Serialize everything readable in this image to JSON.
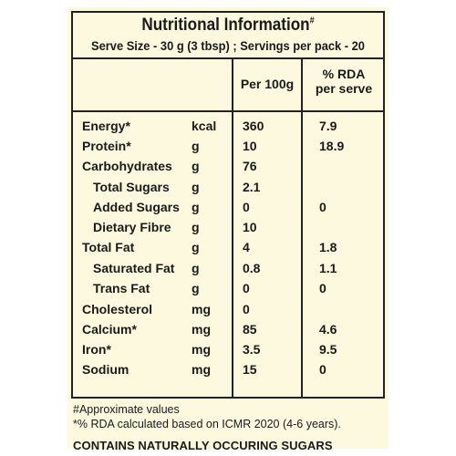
{
  "label": {
    "title": "Nutritional Information",
    "title_mark": "#",
    "serve_line": "Serve Size - 30 g (3 tbsp) ;  Servings per pack - 20",
    "columns": {
      "per100": "Per 100g",
      "rda_line1": "% RDA",
      "rda_line2": "per serve"
    },
    "rows": [
      {
        "name": "Energy*",
        "unit": "kcal",
        "per100": "360",
        "rda": "7.9",
        "indent": false
      },
      {
        "name": "Protein*",
        "unit": "g",
        "per100": "10",
        "rda": "18.9",
        "indent": false
      },
      {
        "name": "Carbohydrates",
        "unit": "g",
        "per100": "76",
        "rda": "",
        "indent": false
      },
      {
        "name": "Total Sugars",
        "unit": "g",
        "per100": "2.1",
        "rda": "",
        "indent": true
      },
      {
        "name": "Added Sugars",
        "unit": "g",
        "per100": "0",
        "rda": "0",
        "indent": true
      },
      {
        "name": "Dietary Fibre",
        "unit": "g",
        "per100": "10",
        "rda": "",
        "indent": true
      },
      {
        "name": "Total Fat",
        "unit": "g",
        "per100": "4",
        "rda": "1.8",
        "indent": false
      },
      {
        "name": "Saturated Fat",
        "unit": "g",
        "per100": "0.8",
        "rda": "1.1",
        "indent": true
      },
      {
        "name": "Trans Fat",
        "unit": "g",
        "per100": "0",
        "rda": "0",
        "indent": true
      },
      {
        "name": "Cholesterol",
        "unit": "mg",
        "per100": "0",
        "rda": "",
        "indent": false
      },
      {
        "name": "Calcium*",
        "unit": "mg",
        "per100": "85",
        "rda": "4.6",
        "indent": false
      },
      {
        "name": "Iron*",
        "unit": "mg",
        "per100": "3.5",
        "rda": "9.5",
        "indent": false
      },
      {
        "name": "Sodium",
        "unit": "mg",
        "per100": "15",
        "rda": "0",
        "indent": false
      }
    ],
    "note1": "#Approximate values",
    "note2": "*% RDA calculated based on ICMR 2020 (4-6 years).",
    "claim": "CONTAINS NATURALLY OCCURING SUGARS"
  },
  "colors": {
    "background": "#fdf9de",
    "ink": "#1a1a1a"
  }
}
